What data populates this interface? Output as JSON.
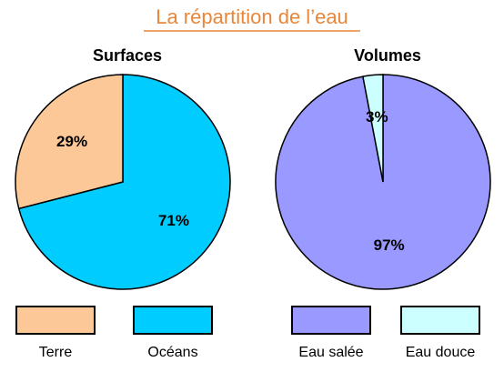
{
  "title": "La répartition de l’eau",
  "chart_data": [
    {
      "type": "pie",
      "title": "Surfaces",
      "categories": [
        "Terre",
        "Océans"
      ],
      "values": [
        29,
        71
      ],
      "value_labels": [
        "29%",
        "71%"
      ],
      "colors": [
        "#fcc898",
        "#00ccff"
      ],
      "start_index": 1
    },
    {
      "type": "pie",
      "title": "Volumes",
      "categories": [
        "Eau salée",
        "Eau douce"
      ],
      "values": [
        97,
        3
      ],
      "value_labels": [
        "97%",
        "3%"
      ],
      "colors": [
        "#9999ff",
        "#ccffff"
      ],
      "start_index": 0
    }
  ]
}
